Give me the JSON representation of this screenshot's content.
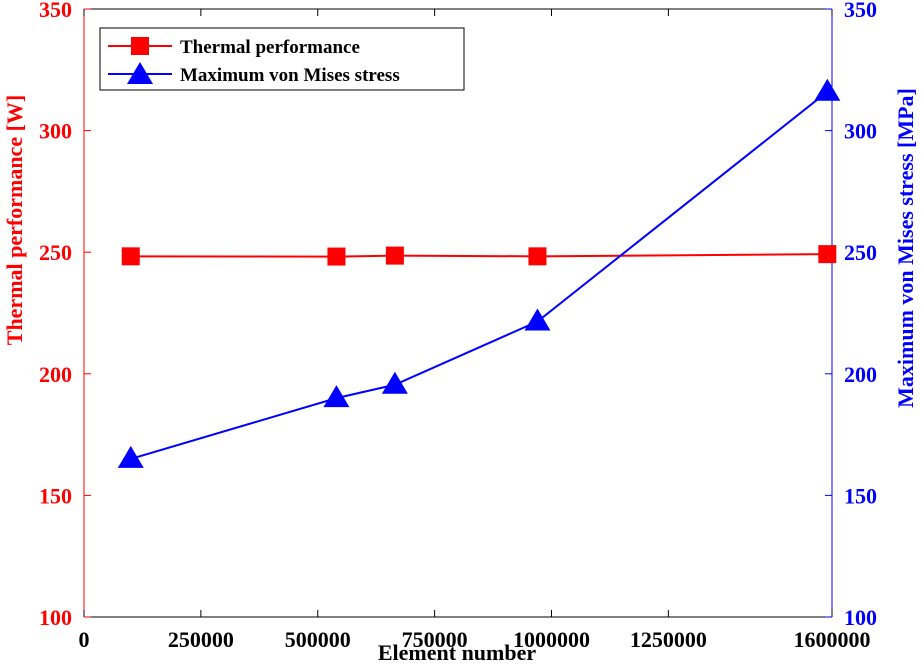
{
  "chart_data": {
    "type": "line",
    "x": [
      100000,
      540000,
      665000,
      970000,
      1590000
    ],
    "xlabel": "Element number",
    "xlim": [
      0,
      1600000
    ],
    "xticks": [
      0,
      250000,
      500000,
      750000,
      1000000,
      1250000,
      1600000
    ],
    "xtick_labels": [
      "0",
      "250000",
      "500000",
      "750000",
      "1000000",
      "1250000",
      "1600000"
    ],
    "left_axis": {
      "label": "Thermal performance [W]",
      "ylim": [
        100,
        350
      ],
      "ticks": [
        100,
        150,
        200,
        250,
        300,
        350
      ],
      "tick_labels": [
        "100",
        "150",
        "200",
        "250",
        "300",
        "350"
      ],
      "color": "#ff0000"
    },
    "right_axis": {
      "label": "Maximum von Mises stress [MPa]",
      "ylim": [
        100,
        350
      ],
      "ticks": [
        100,
        150,
        200,
        250,
        300,
        350
      ],
      "tick_labels": [
        "100",
        "150",
        "200",
        "250",
        "300",
        "350"
      ],
      "color": "#0000ff"
    },
    "series": [
      {
        "name": "Thermal performance",
        "axis": "left",
        "marker": "square",
        "color": "#ff0000",
        "values": [
          248.3,
          248.2,
          248.6,
          248.3,
          249.2
        ]
      },
      {
        "name": "Maximum von Mises stress",
        "axis": "right",
        "marker": "triangle",
        "color": "#0000ff",
        "values": [
          165,
          190,
          195.5,
          221.5,
          316
        ]
      }
    ],
    "legend_position": "top-left",
    "grid": false
  }
}
